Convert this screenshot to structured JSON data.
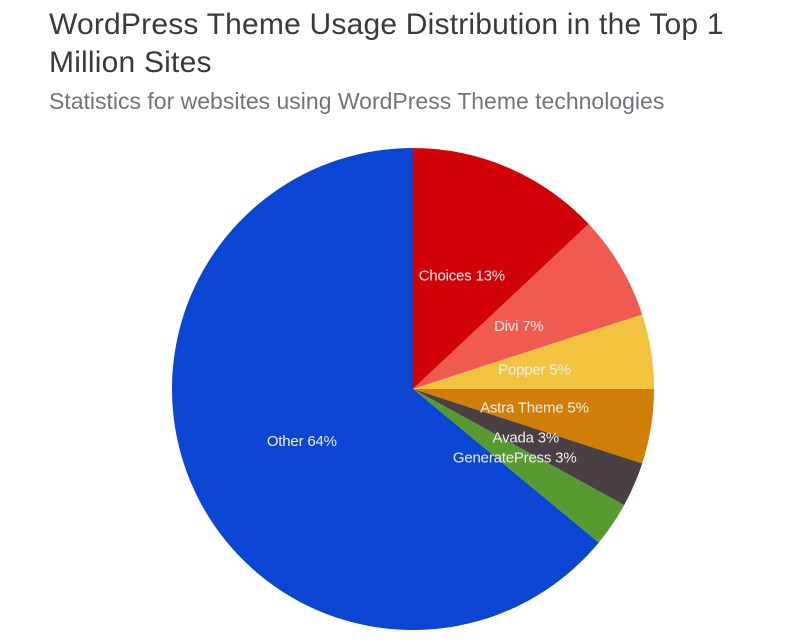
{
  "header": {
    "title": "WordPress Theme Usage Distribution in the Top 1 Million Sites",
    "title_lines": [
      "WordPress Theme Usage Distribution in the Top 1",
      "Million Sites"
    ],
    "subtitle": "Statistics for websites using WordPress Theme technologies",
    "title_color": "#3a393b",
    "subtitle_color": "#73737b"
  },
  "chart_data": {
    "type": "pie",
    "title": "WordPress Theme Usage Distribution in the Top 1 Million Sites",
    "subtitle": "Statistics for websites using WordPress Theme technologies",
    "unit": "percent",
    "start_angle_deg": 0,
    "direction": "clockwise",
    "legend": "none",
    "label_format": "{name} {value}%",
    "label_color": "#efeeee",
    "label_radius_ratio": 0.51,
    "slices": [
      {
        "name": "Choices",
        "value": 13,
        "color": "#d10309"
      },
      {
        "name": "Divi",
        "value": 7,
        "color": "#ef5b50"
      },
      {
        "name": "Popper",
        "value": 5,
        "color": "#f2c33e"
      },
      {
        "name": "Astra Theme",
        "value": 5,
        "color": "#d17e08"
      },
      {
        "name": "Avada",
        "value": 3,
        "color": "#4a3f42"
      },
      {
        "name": "GeneratePress",
        "value": 3,
        "color": "#579a30"
      },
      {
        "name": "Other",
        "value": 64,
        "color": "#0a46d3"
      }
    ]
  }
}
